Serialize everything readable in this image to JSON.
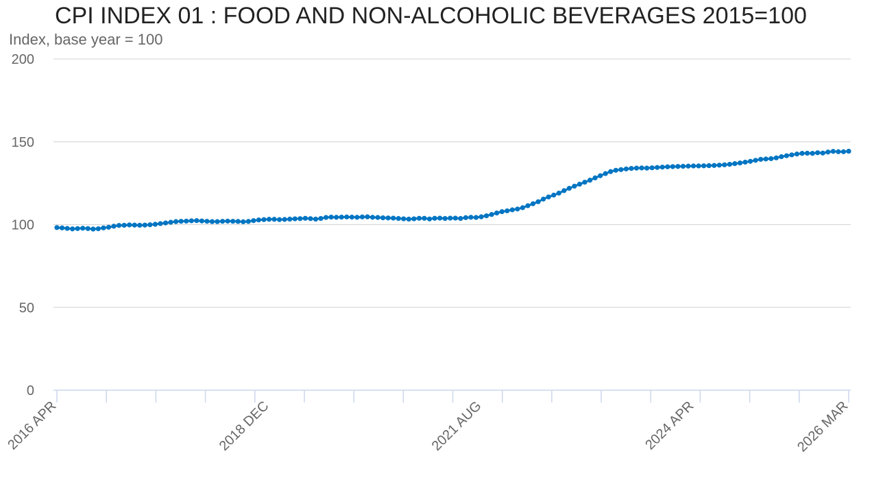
{
  "chart_data": {
    "type": "line",
    "title": "CPI INDEX 01 : FOOD AND NON-ALCOHOLIC BEVERAGES 2015=100",
    "ylabel": "Index, base year = 100",
    "xlabel": "",
    "ylim": [
      0,
      200
    ],
    "yticks": [
      "0",
      "50",
      "100",
      "150",
      "200"
    ],
    "xticks": [
      "2016 APR",
      "2018 DEC",
      "2021 AUG",
      "2024 APR",
      "2026 MAR"
    ],
    "x_start": "2016 APR",
    "x_end": "2026 MAR",
    "grid": true,
    "series": [
      {
        "color": "#0075c2",
        "values": [
          98.2,
          98.0,
          97.7,
          97.4,
          97.6,
          97.8,
          97.6,
          97.3,
          97.5,
          98.0,
          98.4,
          99.0,
          99.5,
          99.6,
          99.8,
          99.7,
          99.6,
          99.7,
          99.9,
          100.2,
          100.6,
          101.0,
          101.4,
          101.8,
          102.0,
          102.1,
          102.3,
          102.4,
          102.2,
          102.0,
          101.8,
          101.8,
          102.0,
          102.1,
          102.0,
          101.9,
          101.7,
          101.9,
          102.4,
          102.8,
          103.0,
          103.2,
          103.2,
          103.0,
          103.1,
          103.3,
          103.5,
          103.6,
          103.8,
          103.6,
          103.3,
          103.7,
          104.3,
          104.5,
          104.4,
          104.5,
          104.6,
          104.5,
          104.4,
          104.6,
          104.7,
          104.4,
          104.3,
          104.1,
          104.0,
          103.9,
          103.7,
          103.5,
          103.3,
          103.5,
          103.8,
          103.8,
          103.4,
          103.8,
          103.9,
          103.7,
          103.9,
          103.9,
          103.7,
          104.2,
          104.4,
          104.3,
          104.7,
          105.3,
          106.1,
          107.0,
          107.8,
          108.3,
          108.9,
          109.4,
          110.2,
          111.4,
          112.6,
          113.8,
          115.4,
          116.7,
          117.8,
          119.0,
          120.5,
          121.9,
          123.2,
          124.4,
          125.6,
          126.8,
          128.2,
          129.5,
          130.8,
          132.0,
          132.8,
          133.2,
          133.6,
          133.9,
          134.1,
          134.2,
          134.1,
          134.3,
          134.5,
          134.7,
          134.9,
          135.0,
          135.1,
          135.2,
          135.3,
          135.4,
          135.4,
          135.5,
          135.6,
          135.7,
          135.9,
          136.1,
          136.4,
          136.8,
          137.2,
          137.7,
          138.2,
          138.8,
          139.4,
          139.6,
          139.8,
          140.3,
          141.0,
          141.6,
          142.1,
          142.6,
          143.0,
          143.1,
          143.0,
          143.4,
          143.2,
          143.8,
          144.2,
          144.0,
          144.0,
          144.3
        ]
      }
    ]
  }
}
